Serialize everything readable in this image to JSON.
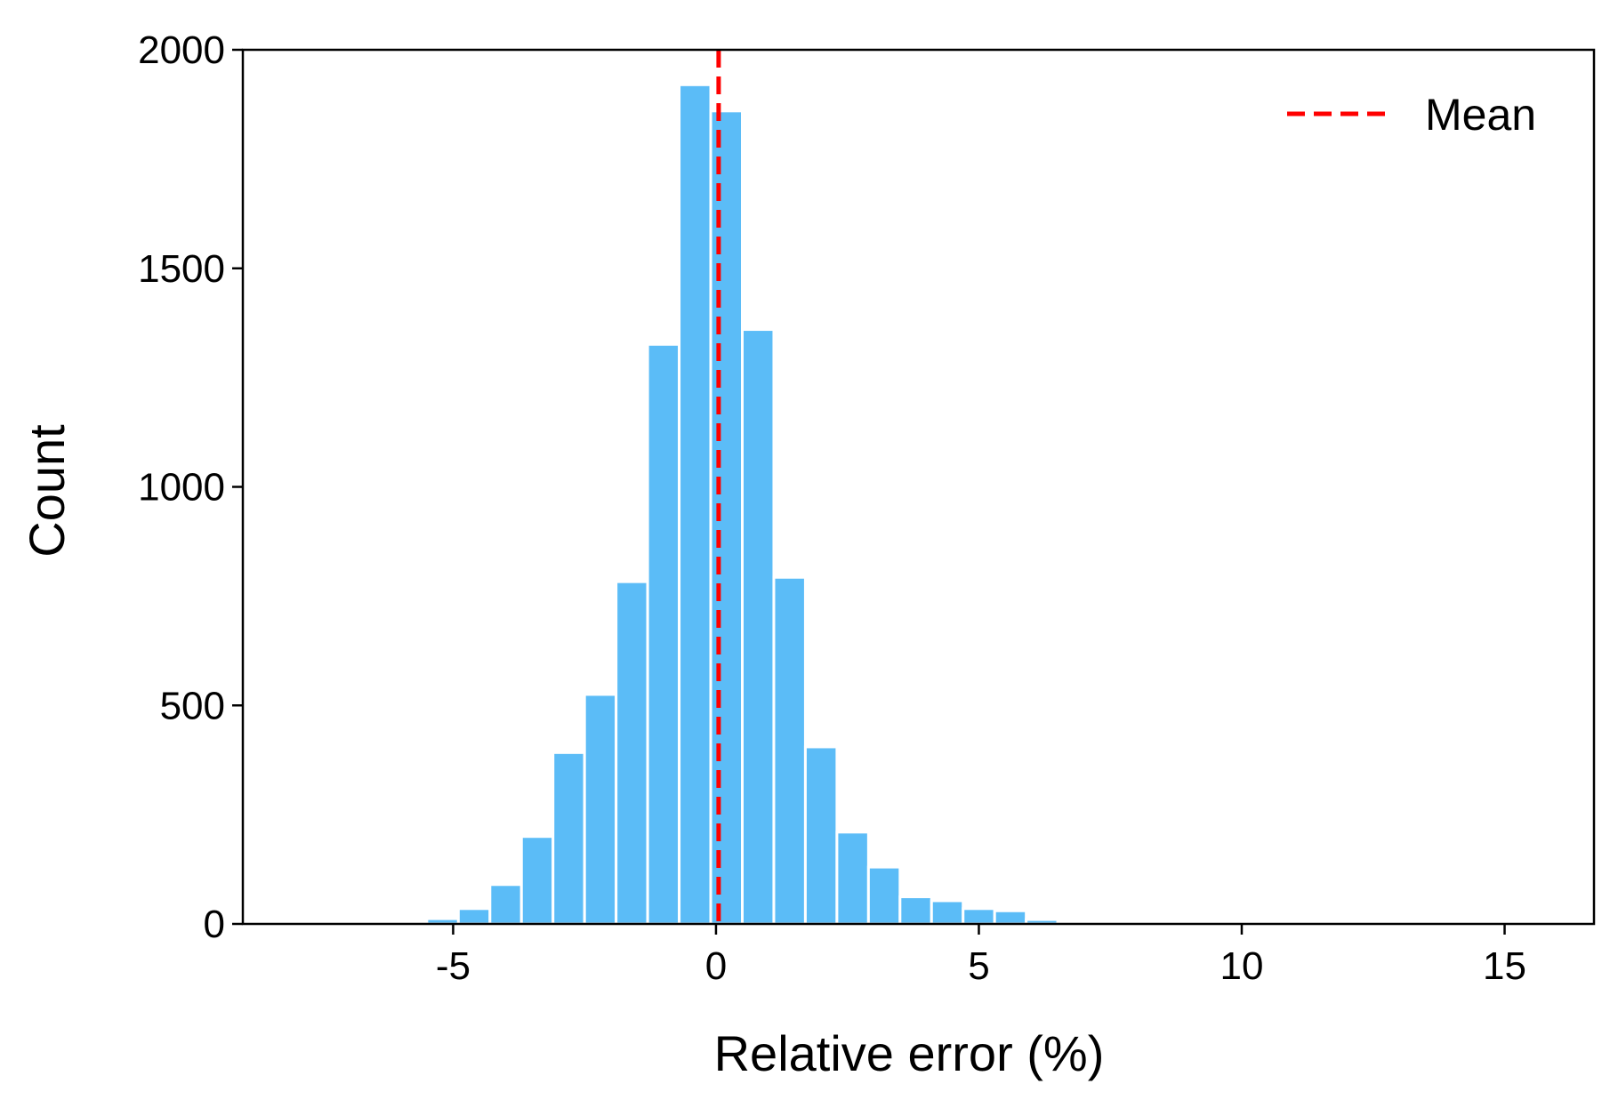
{
  "chart_data": {
    "type": "bar",
    "subtype": "histogram",
    "title": "",
    "xlabel": "Relative error (%)",
    "ylabel": "Count",
    "xlim": [
      -9.0,
      16.7
    ],
    "ylim": [
      0,
      2000
    ],
    "xticks": [
      -5,
      0,
      5,
      10,
      15
    ],
    "xtick_labels": [
      "-5",
      "0",
      "5",
      "10",
      "15"
    ],
    "yticks": [
      0,
      500,
      1000,
      1500,
      2000
    ],
    "ytick_labels": [
      "0",
      "500",
      "1000",
      "1500",
      "2000"
    ],
    "grid": false,
    "bin_width": 0.6,
    "bar_color": "#5bbcf7",
    "bins": [
      {
        "x0": -6.7,
        "x1": -6.1,
        "count": 2
      },
      {
        "x0": -6.1,
        "x1": -5.5,
        "count": 4
      },
      {
        "x0": -5.5,
        "x1": -4.9,
        "count": 12
      },
      {
        "x0": -4.9,
        "x1": -4.3,
        "count": 35
      },
      {
        "x0": -4.3,
        "x1": -3.7,
        "count": 90
      },
      {
        "x0": -3.7,
        "x1": -3.1,
        "count": 200
      },
      {
        "x0": -3.1,
        "x1": -2.5,
        "count": 392
      },
      {
        "x0": -2.5,
        "x1": -1.9,
        "count": 525
      },
      {
        "x0": -1.9,
        "x1": -1.3,
        "count": 783
      },
      {
        "x0": -1.3,
        "x1": -0.7,
        "count": 1326
      },
      {
        "x0": -0.7,
        "x1": -0.1,
        "count": 1920
      },
      {
        "x0": -0.1,
        "x1": 0.5,
        "count": 1860
      },
      {
        "x0": 0.5,
        "x1": 1.1,
        "count": 1360
      },
      {
        "x0": 1.1,
        "x1": 1.7,
        "count": 793
      },
      {
        "x0": 1.7,
        "x1": 2.3,
        "count": 405
      },
      {
        "x0": 2.3,
        "x1": 2.9,
        "count": 210
      },
      {
        "x0": 2.9,
        "x1": 3.5,
        "count": 130
      },
      {
        "x0": 3.5,
        "x1": 4.1,
        "count": 62
      },
      {
        "x0": 4.1,
        "x1": 4.7,
        "count": 53
      },
      {
        "x0": 4.7,
        "x1": 5.3,
        "count": 35
      },
      {
        "x0": 5.3,
        "x1": 5.9,
        "count": 30
      },
      {
        "x0": 5.9,
        "x1": 6.5,
        "count": 10
      },
      {
        "x0": 6.5,
        "x1": 7.1,
        "count": 4
      },
      {
        "x0": 7.1,
        "x1": 7.7,
        "count": 2
      },
      {
        "x0": 7.7,
        "x1": 8.3,
        "count": 1
      },
      {
        "x0": 15.0,
        "x1": 15.6,
        "count": 1
      }
    ],
    "mean_line": {
      "x": 0.05,
      "color": "#ff0000",
      "style": "dashed"
    },
    "legend": {
      "placement": "top-right",
      "entries": [
        {
          "label": "Mean",
          "color": "#ff0000",
          "style": "dashed"
        }
      ]
    }
  }
}
